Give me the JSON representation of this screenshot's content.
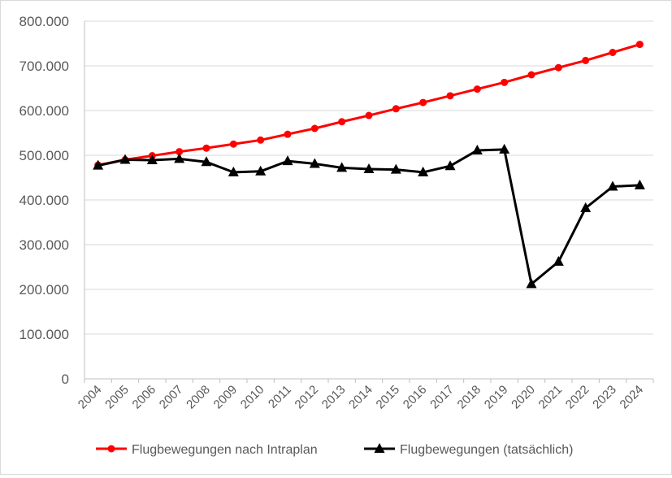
{
  "chart_data": {
    "type": "line",
    "x": [
      "2004",
      "2005",
      "2006",
      "2007",
      "2008",
      "2009",
      "2010",
      "2011",
      "2012",
      "2013",
      "2014",
      "2015",
      "2016",
      "2017",
      "2018",
      "2019",
      "2020",
      "2021",
      "2022",
      "2023",
      "2024"
    ],
    "ylim": [
      0,
      800000
    ],
    "yticks": [
      0,
      100000,
      200000,
      300000,
      400000,
      500000,
      600000,
      700000,
      800000
    ],
    "ytick_labels": [
      "0",
      "100.000",
      "200.000",
      "300.000",
      "400.000",
      "500.000",
      "600.000",
      "700.000",
      "800.000"
    ],
    "grid": true,
    "legend_position": "bottom",
    "series": [
      {
        "name": "Flugbewegungen nach Intraplan",
        "color": "#ff0000",
        "marker": "circle",
        "values": [
          478000,
          490000,
          499000,
          508000,
          516000,
          525000,
          534000,
          547000,
          560000,
          575000,
          589000,
          604000,
          618000,
          633000,
          648000,
          663000,
          680000,
          696000,
          712000,
          730000,
          748000
        ]
      },
      {
        "name": "Flugbewegungen (tatsächlich)",
        "color": "#000000",
        "marker": "triangle",
        "values": [
          477000,
          490000,
          489000,
          492000,
          485000,
          462000,
          464000,
          487000,
          481000,
          472000,
          469000,
          468000,
          462000,
          476000,
          511000,
          513000,
          212000,
          262000,
          382000,
          430000,
          433000
        ]
      }
    ]
  }
}
